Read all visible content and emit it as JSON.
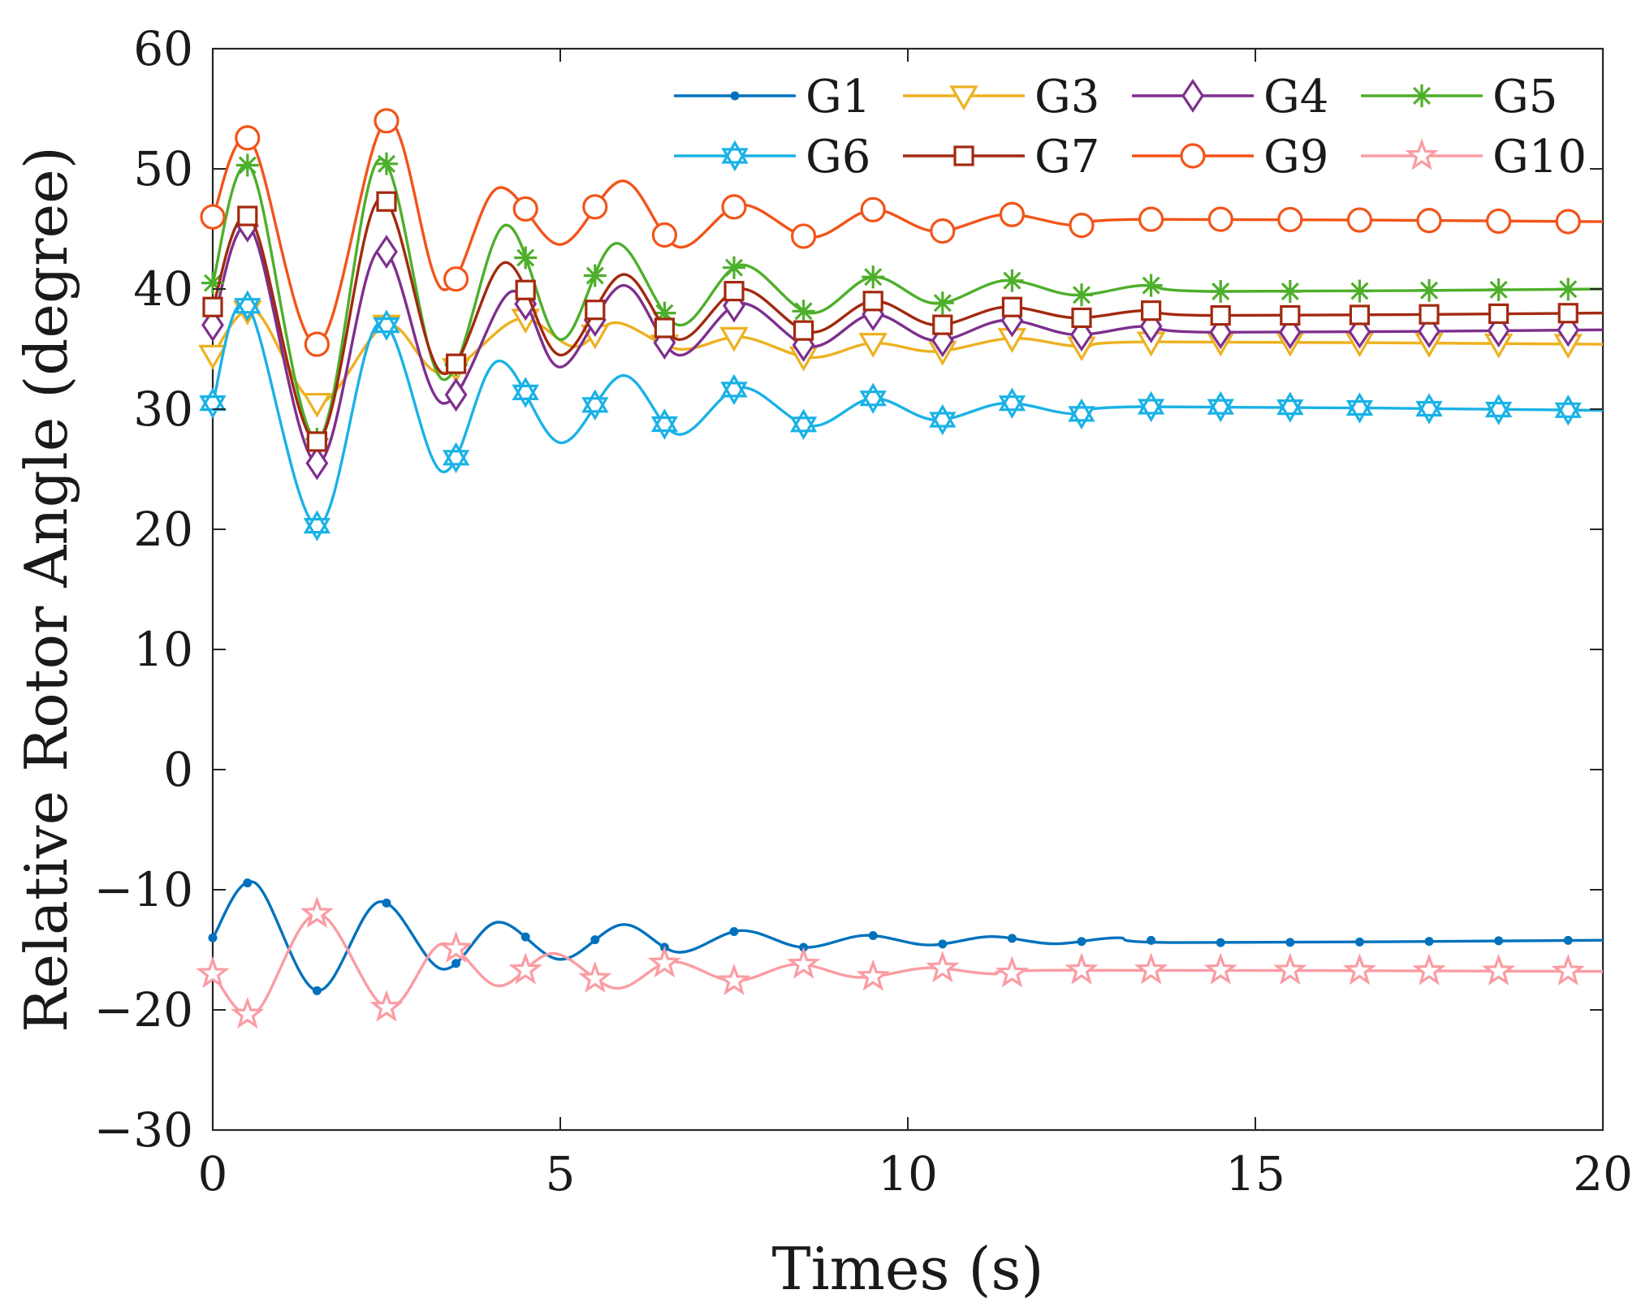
{
  "chart_data": {
    "type": "line",
    "title": "",
    "xlabel": "Times (s)",
    "ylabel": "Relative Rotor Angle (degree)",
    "xlim": [
      0,
      20
    ],
    "ylim": [
      -30,
      60
    ],
    "x_ticks": [
      0,
      5,
      10,
      15,
      20
    ],
    "x_tick_labels": [
      "0",
      "5",
      "10",
      "15",
      "20"
    ],
    "y_ticks": [
      -30,
      -20,
      -10,
      0,
      10,
      20,
      30,
      40,
      50,
      60
    ],
    "y_tick_labels": [
      "−30",
      "−20",
      "−10",
      "0",
      "10",
      "20",
      "30",
      "40",
      "50",
      "60"
    ],
    "grid": false,
    "legend_position": "top-right",
    "marker_times": [
      0,
      0.5,
      1.5,
      2.5,
      3.5,
      4.5,
      5.5,
      6.5,
      7.5,
      8.5,
      9.5,
      10.5,
      11.5,
      12.5,
      13.5,
      14.5,
      15.5,
      16.5,
      17.5,
      18.5,
      19.5
    ],
    "series": [
      {
        "name": "G1",
        "color": "#0072BD",
        "marker": "dot",
        "final": -14.2,
        "points": [
          [
            0,
            -14.0
          ],
          [
            0.6,
            -9.4
          ],
          [
            1.5,
            -18.4
          ],
          [
            2.4,
            -11.0
          ],
          [
            3.3,
            -16.6
          ],
          [
            4.1,
            -12.7
          ],
          [
            5.0,
            -15.8
          ],
          [
            5.9,
            -12.9
          ],
          [
            6.7,
            -15.2
          ],
          [
            7.6,
            -13.4
          ],
          [
            8.5,
            -14.8
          ],
          [
            9.4,
            -13.8
          ],
          [
            10.3,
            -14.6
          ],
          [
            11.2,
            -13.9
          ],
          [
            12.1,
            -14.5
          ],
          [
            13.0,
            -14.0
          ],
          [
            13.9,
            -14.4
          ],
          [
            20,
            -14.2
          ]
        ]
      },
      {
        "name": "G3",
        "color": "#EDB120",
        "marker": "triangle-down",
        "final": 35.4,
        "points": [
          [
            0,
            34.5
          ],
          [
            0.6,
            38.2
          ],
          [
            1.5,
            30.5
          ],
          [
            2.5,
            37.0
          ],
          [
            3.3,
            33.0
          ],
          [
            4.4,
            37.5
          ],
          [
            5.2,
            35.2
          ],
          [
            5.8,
            37.2
          ],
          [
            6.7,
            35.0
          ],
          [
            7.6,
            36.0
          ],
          [
            8.6,
            34.3
          ],
          [
            9.5,
            35.5
          ],
          [
            10.4,
            34.8
          ],
          [
            11.5,
            35.9
          ],
          [
            12.5,
            35.2
          ],
          [
            13.5,
            35.6
          ],
          [
            20,
            35.4
          ]
        ]
      },
      {
        "name": "G4",
        "color": "#7E2F8E",
        "marker": "diamond",
        "final": 36.6,
        "points": [
          [
            0,
            37.0
          ],
          [
            0.55,
            45.0
          ],
          [
            1.5,
            25.5
          ],
          [
            2.4,
            43.3
          ],
          [
            3.3,
            30.5
          ],
          [
            4.3,
            39.8
          ],
          [
            5.0,
            33.5
          ],
          [
            5.9,
            40.3
          ],
          [
            6.7,
            34.5
          ],
          [
            7.6,
            38.8
          ],
          [
            8.6,
            35.2
          ],
          [
            9.5,
            37.9
          ],
          [
            10.4,
            35.7
          ],
          [
            11.4,
            37.4
          ],
          [
            12.4,
            36.2
          ],
          [
            13.4,
            36.9
          ],
          [
            14.4,
            36.4
          ],
          [
            20,
            36.6
          ]
        ]
      },
      {
        "name": "G5",
        "color": "#4DAF2B",
        "marker": "asterisk",
        "final": 40.0,
        "points": [
          [
            0,
            40.5
          ],
          [
            0.55,
            50.0
          ],
          [
            1.5,
            27.5
          ],
          [
            2.4,
            50.8
          ],
          [
            3.3,
            32.5
          ],
          [
            4.2,
            45.3
          ],
          [
            5.0,
            35.8
          ],
          [
            5.8,
            43.8
          ],
          [
            6.7,
            37.0
          ],
          [
            7.6,
            42.0
          ],
          [
            8.6,
            38.0
          ],
          [
            9.5,
            41.0
          ],
          [
            10.4,
            38.8
          ],
          [
            11.4,
            40.7
          ],
          [
            12.4,
            39.5
          ],
          [
            13.4,
            40.3
          ],
          [
            14.4,
            39.8
          ],
          [
            20,
            40.0
          ]
        ]
      },
      {
        "name": "G6",
        "color": "#1AB2E6",
        "marker": "hexagram",
        "final": 29.9,
        "points": [
          [
            0,
            30.5
          ],
          [
            0.5,
            38.6
          ],
          [
            1.5,
            20.3
          ],
          [
            2.4,
            37.2
          ],
          [
            3.3,
            24.8
          ],
          [
            4.1,
            34.0
          ],
          [
            5.0,
            27.2
          ],
          [
            5.9,
            32.8
          ],
          [
            6.7,
            27.9
          ],
          [
            7.6,
            31.8
          ],
          [
            8.6,
            28.6
          ],
          [
            9.5,
            30.9
          ],
          [
            10.4,
            29.1
          ],
          [
            11.4,
            30.5
          ],
          [
            12.4,
            29.6
          ],
          [
            13.4,
            30.2
          ],
          [
            20,
            29.9
          ]
        ]
      },
      {
        "name": "G7",
        "color": "#A2290F",
        "marker": "square",
        "final": 38.0,
        "points": [
          [
            0,
            38.5
          ],
          [
            0.55,
            45.8
          ],
          [
            1.5,
            27.3
          ],
          [
            2.4,
            47.5
          ],
          [
            3.3,
            33.0
          ],
          [
            4.2,
            42.2
          ],
          [
            5.0,
            34.5
          ],
          [
            5.9,
            41.2
          ],
          [
            6.7,
            35.8
          ],
          [
            7.6,
            40.0
          ],
          [
            8.6,
            36.4
          ],
          [
            9.5,
            39.0
          ],
          [
            10.4,
            37.0
          ],
          [
            11.4,
            38.5
          ],
          [
            12.4,
            37.6
          ],
          [
            13.4,
            38.2
          ],
          [
            14.4,
            37.8
          ],
          [
            20,
            38.0
          ]
        ]
      },
      {
        "name": "G9",
        "color": "#F2541A",
        "marker": "circle",
        "final": 45.6,
        "points": [
          [
            0,
            46.0
          ],
          [
            0.55,
            52.3
          ],
          [
            1.5,
            35.4
          ],
          [
            2.5,
            54.0
          ],
          [
            3.3,
            40.0
          ],
          [
            4.1,
            48.4
          ],
          [
            5.0,
            43.7
          ],
          [
            5.9,
            49.0
          ],
          [
            6.7,
            43.5
          ],
          [
            7.6,
            47.0
          ],
          [
            8.6,
            44.3
          ],
          [
            9.5,
            46.6
          ],
          [
            10.4,
            44.8
          ],
          [
            11.4,
            46.2
          ],
          [
            12.4,
            45.3
          ],
          [
            13.4,
            45.8
          ],
          [
            20,
            45.6
          ]
        ]
      },
      {
        "name": "G10",
        "color": "#FA9CA3",
        "marker": "pentagram",
        "final": -16.8,
        "points": [
          [
            0,
            -17.0
          ],
          [
            0.6,
            -20.3
          ],
          [
            1.5,
            -12.0
          ],
          [
            2.5,
            -19.8
          ],
          [
            3.3,
            -14.5
          ],
          [
            4.1,
            -18.0
          ],
          [
            4.9,
            -15.3
          ],
          [
            5.8,
            -18.2
          ],
          [
            6.6,
            -16.0
          ],
          [
            7.5,
            -17.6
          ],
          [
            8.4,
            -16.2
          ],
          [
            9.3,
            -17.3
          ],
          [
            10.3,
            -16.5
          ],
          [
            11.2,
            -17.0
          ],
          [
            12.2,
            -16.7
          ],
          [
            20,
            -16.8
          ]
        ]
      }
    ]
  }
}
